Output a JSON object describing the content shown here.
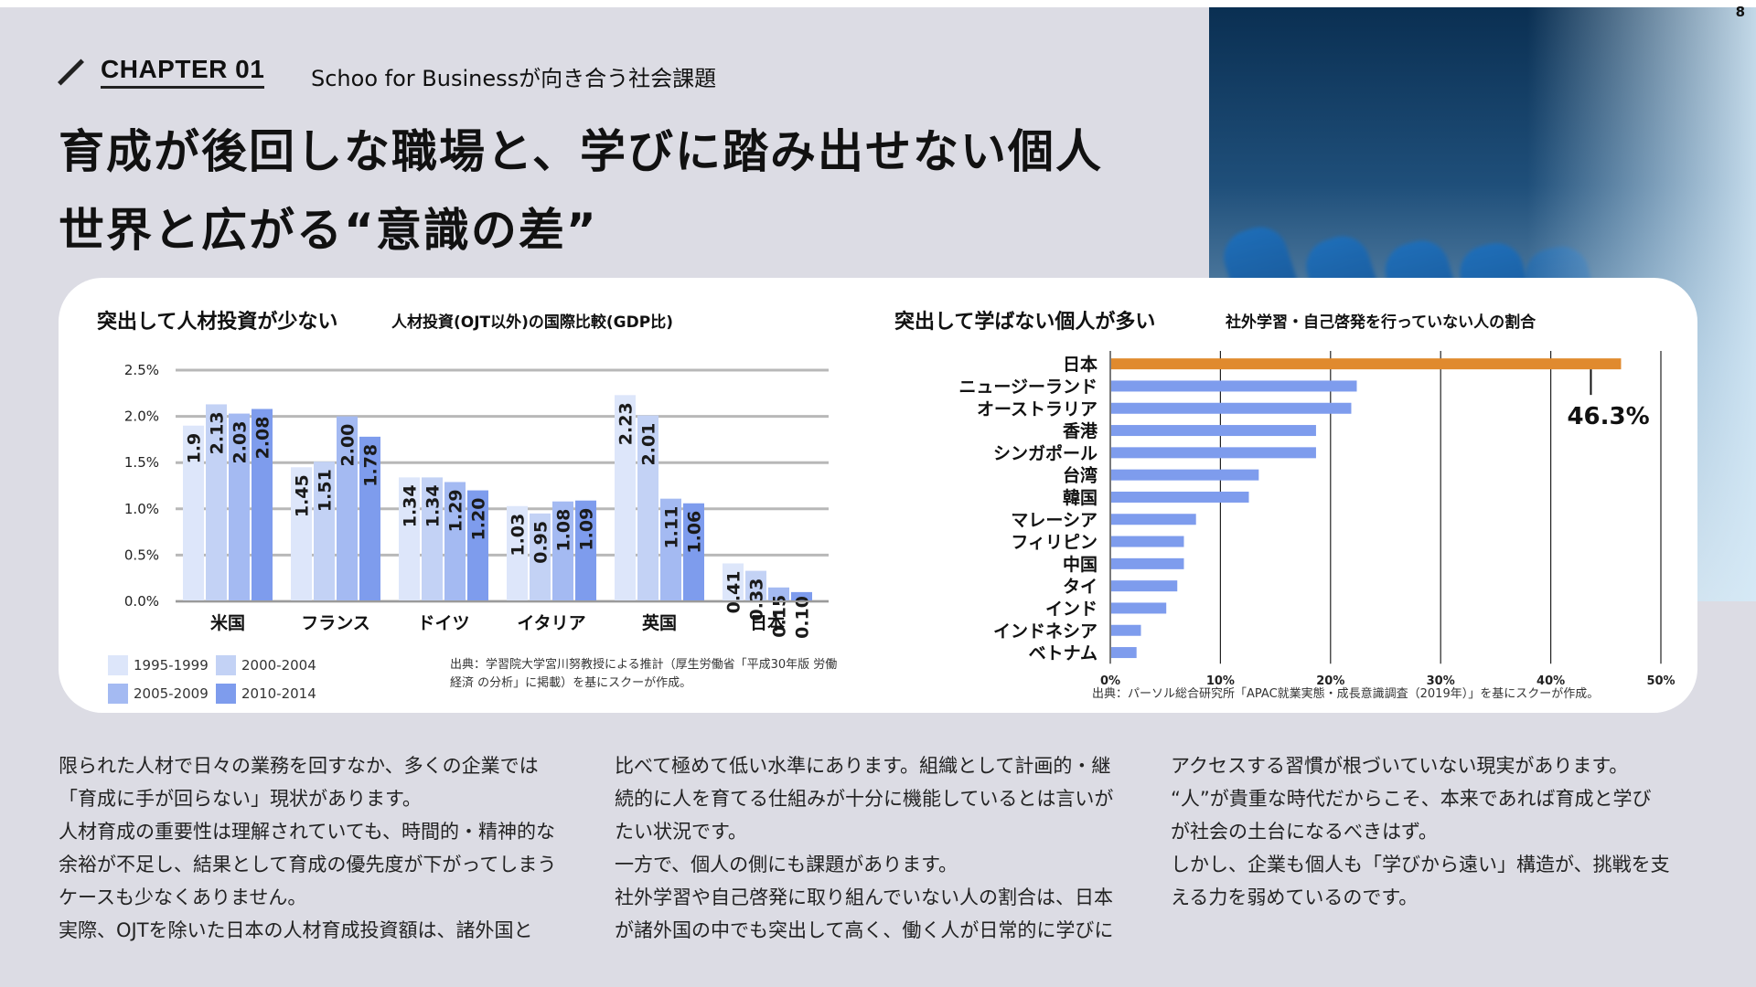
{
  "page_number": "8",
  "chapter": {
    "label": "CHAPTER 01",
    "subtitle": "Schoo for Businessが向き合う社会課題"
  },
  "headline": {
    "line1": "育成が後回しな職場と、学びに踏み出せない個人",
    "line2": "世界と広がる“意識の差”"
  },
  "photo": {
    "icon": "meeting-room-photo"
  },
  "left_chart": {
    "title": "突出して人材投資が少ない",
    "subtitle": "人材投資(OJT以外)の国際比較(GDP比)",
    "note_line1": "出典：学習院大学宮川努教授による推計（厚生労働省「平成30年版 労働",
    "note_line2": "経済 の分析」に掲載）を基にスクーが作成。"
  },
  "right_chart": {
    "title": "突出して学ばない個人が多い",
    "subtitle": "社外学習・自己啓発を行っていない人の割合",
    "note": "出典：パーソル総合研究所「APAC就業実態・成長意識調査（2019年）」を基にスクーが作成。"
  },
  "chart_data": [
    {
      "type": "bar",
      "title": "人材投資(OJT以外)の国際比較(GDP比)",
      "categories": [
        "米国",
        "フランス",
        "ドイツ",
        "イタリア",
        "英国",
        "日本"
      ],
      "ylim": [
        0,
        2.5
      ],
      "yticks": [
        "0.0%",
        "0.5%",
        "1.0%",
        "1.5%",
        "2.0%",
        "2.5%"
      ],
      "grid": true,
      "legend_position": "bottom-left",
      "series": [
        {
          "name": "1995-1999",
          "color": "#dde6fa",
          "values": [
            1.9,
            1.45,
            1.34,
            1.03,
            2.23,
            0.41
          ],
          "labels": [
            "1.9",
            "1.45",
            "1.34",
            "1.03",
            "2.23",
            "0.41"
          ]
        },
        {
          "name": "2000-2004",
          "color": "#c3d2f5",
          "values": [
            2.13,
            1.51,
            1.34,
            0.95,
            2.01,
            0.33
          ],
          "labels": [
            "2.13",
            "1.51",
            "1.34",
            "0.95",
            "2.01",
            "0.33"
          ]
        },
        {
          "name": "2005-2009",
          "color": "#a4baf2",
          "values": [
            2.03,
            2.0,
            1.29,
            1.08,
            1.11,
            0.15
          ],
          "labels": [
            "2.03",
            "2.00",
            "1.29",
            "1.08",
            "1.11",
            "0.15"
          ]
        },
        {
          "name": "2010-2014",
          "color": "#7e9ced",
          "values": [
            2.08,
            1.78,
            1.2,
            1.09,
            1.06,
            0.1
          ],
          "labels": [
            "2.08",
            "1.78",
            "1.20",
            "1.09",
            "1.06",
            "0.10"
          ]
        }
      ]
    },
    {
      "type": "bar",
      "orientation": "horizontal",
      "title": "社外学習・自己啓発を行っていない人の割合",
      "categories": [
        "日本",
        "ニュージーランド",
        "オーストラリア",
        "香港",
        "シンガポール",
        "台湾",
        "韓国",
        "マレーシア",
        "フィリピン",
        "中国",
        "タイ",
        "インド",
        "インドネシア",
        "ベトナム"
      ],
      "values": [
        46.3,
        22.3,
        21.8,
        18.6,
        18.6,
        13.4,
        12.5,
        7.7,
        6.6,
        6.6,
        6.0,
        5.0,
        2.7,
        2.3
      ],
      "xlim": [
        0,
        50
      ],
      "xticks": [
        "0%",
        "10%",
        "20%",
        "30%",
        "40%",
        "50%"
      ],
      "highlight": {
        "category": "日本",
        "label": "46.3%",
        "color": "#e08a2e"
      },
      "bar_color": "#7e9ced",
      "grid": true
    }
  ],
  "body": {
    "col1": "限られた人材で日々の業務を回すなか、多くの企業では\n「育成に手が回らない」現状があります。\n人材育成の重要性は理解されていても、時間的・精神的な\n余裕が不足し、結果として育成の優先度が下がってしまう\nケースも少なくありません。\n実際、OJTを除いた日本の人材育成投資額は、諸外国と",
    "col2": "比べて極めて低い水準にあります。組織として計画的・継\n続的に人を育てる仕組みが十分に機能しているとは言いが\nたい状況です。\n一方で、個人の側にも課題があります。\n社外学習や自己啓発に取り組んでいない人の割合は、日本\nが諸外国の中でも突出して高く、働く人が日常的に学びに",
    "col3": "アクセスする習慣が根づいていない現実があります。\n“人”が貴重な時代だからこそ、本来であれば育成と学び\nが社会の土台になるべきはず。\nしかし、企業も個人も「学びから遠い」構造が、挑戦を支\nえる力を弱めているのです。"
  }
}
